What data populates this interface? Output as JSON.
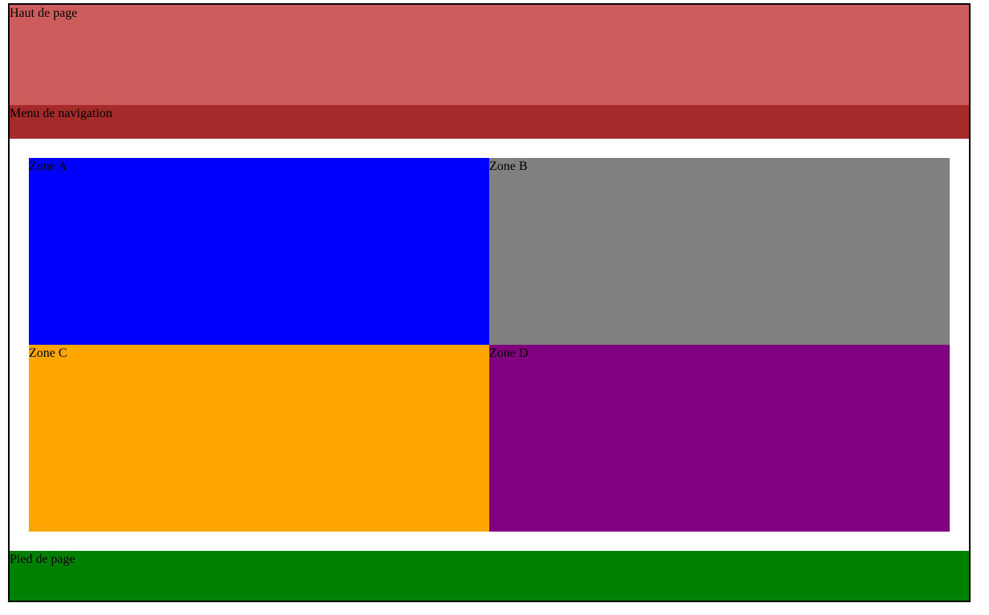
{
  "header": {
    "label": "Haut de page",
    "color": "#cd5c5c"
  },
  "nav": {
    "label": "Menu de navigation",
    "color": "#a52a2a"
  },
  "zones": [
    {
      "label": "Zone A",
      "color": "#0000ff"
    },
    {
      "label": "Zone B",
      "color": "#808080"
    },
    {
      "label": "Zone C",
      "color": "#ffa500"
    },
    {
      "label": "Zone D",
      "color": "#800080"
    }
  ],
  "footer": {
    "label": "Pied de page",
    "color": "#008000"
  },
  "colors": {
    "border": "#000000",
    "background": "#ffffff"
  }
}
